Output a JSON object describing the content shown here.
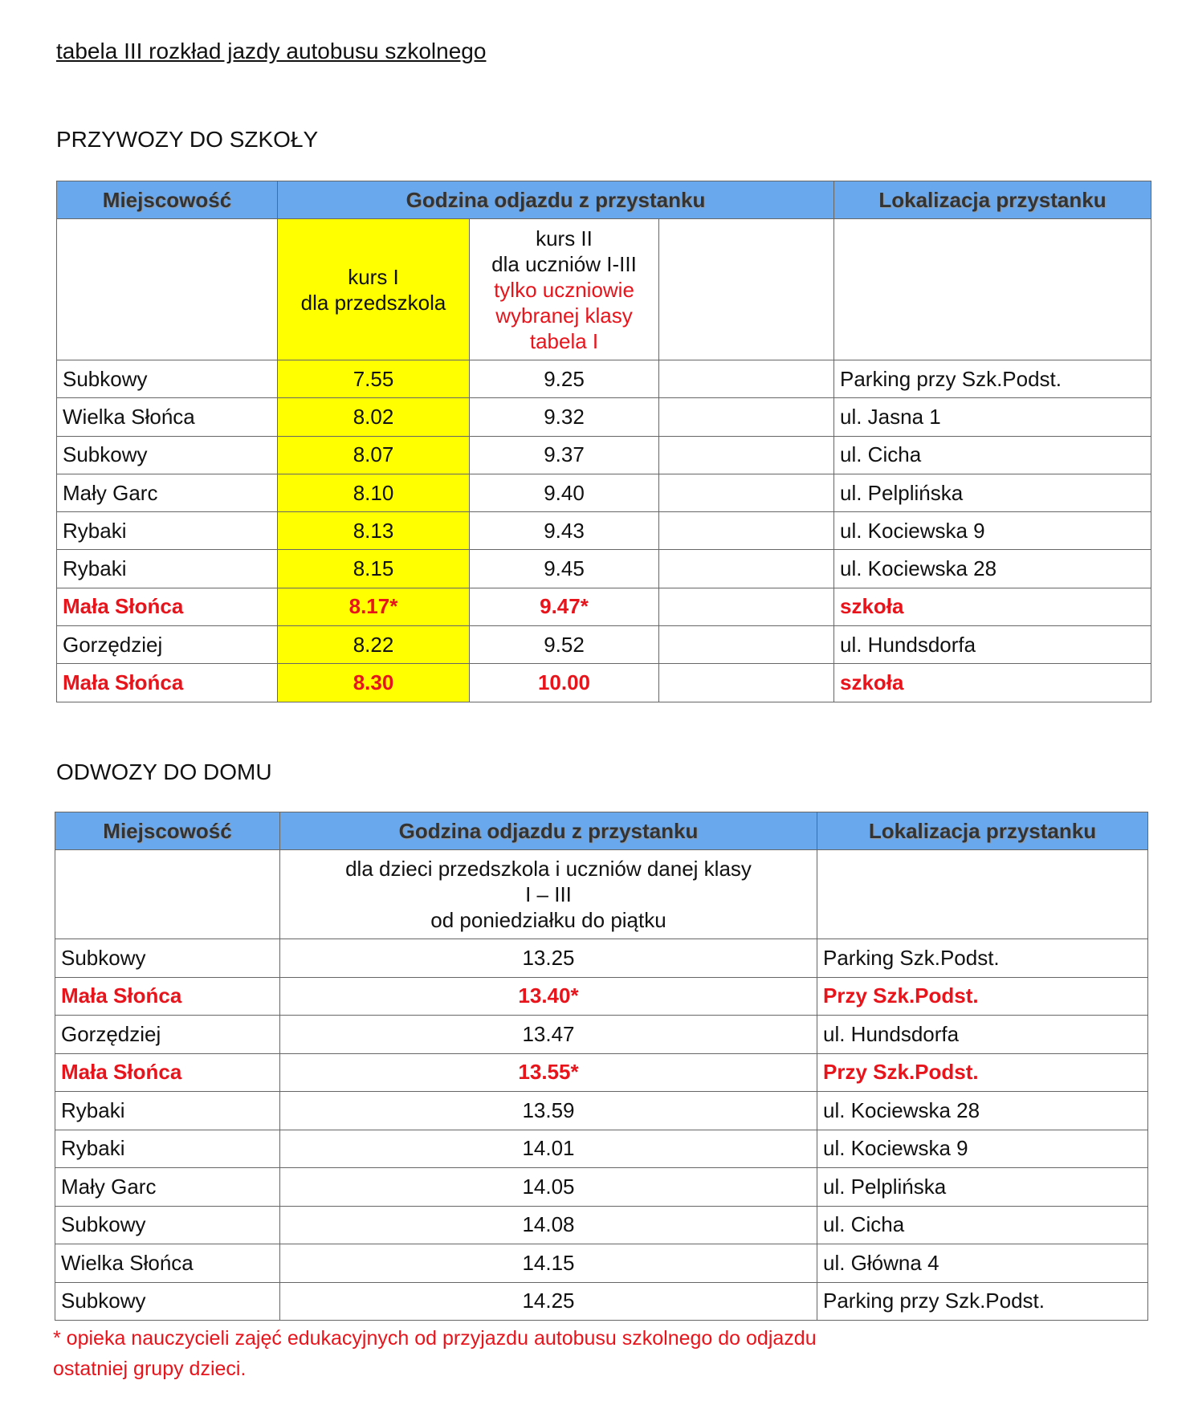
{
  "title": "tabela III rozkład jazdy autobusu szkolnego",
  "colors": {
    "header": "#6aa8ee",
    "highlight": "#ffff00",
    "red": "#e8141c"
  },
  "przywozy": {
    "heading": "PRZYWOZY DO SZKOŁY",
    "headers": [
      "Miejscowość",
      "Godzina odjazdu  z przystanku",
      "Lokalizacja przystanku"
    ],
    "kurs1": [
      "kurs I",
      "dla przedszkola"
    ],
    "kurs2": [
      "kurs II",
      "dla uczniów I-III"
    ],
    "kurs2_red": [
      "tylko uczniowie",
      "wybranej klasy",
      "tabela I"
    ],
    "rows": [
      {
        "place": "Subkowy",
        "k1": "7.55",
        "k2": "9.25",
        "loc": "Parking przy Szk.Podst.",
        "red": false
      },
      {
        "place": "Wielka Słońca",
        "k1": "8.02",
        "k2": "9.32",
        "loc": "ul. Jasna 1",
        "red": false
      },
      {
        "place": "Subkowy",
        "k1": "8.07",
        "k2": "9.37",
        "loc": "ul. Cicha",
        "red": false
      },
      {
        "place": "Mały Garc",
        "k1": "8.10",
        "k2": "9.40",
        "loc": "ul. Pelplińska",
        "red": false
      },
      {
        "place": "Rybaki",
        "k1": "8.13",
        "k2": "9.43",
        "loc": " ul. Kociewska 9",
        "red": false
      },
      {
        "place": "Rybaki",
        "k1": "8.15",
        "k2": "9.45",
        "loc": "ul. Kociewska 28",
        "red": false
      },
      {
        "place": "Mała Słońca",
        "k1": "8.17*",
        "k2": "9.47*",
        "loc": "szkoła",
        "red": true
      },
      {
        "place": "Gorzędziej",
        "k1": "8.22",
        "k2": "9.52",
        "loc": "ul. Hundsdorfa",
        "red": false
      },
      {
        "place": "Mała Słońca",
        "k1": "8.30",
        "k2": "10.00",
        "loc": "szkoła",
        "red": true
      }
    ]
  },
  "odwozy": {
    "heading": "ODWOZY DO DOMU",
    "headers": [
      "Miejscowość",
      "Godzina odjazdu z przystanku",
      "Lokalizacja przystanku"
    ],
    "sub": [
      "dla dzieci przedszkola i uczniów danej klasy",
      "I – III",
      "od poniedziałku do piątku"
    ],
    "rows": [
      {
        "place": "Subkowy",
        "time": "13.25",
        "loc": "Parking Szk.Podst.",
        "red": false
      },
      {
        "place": "Mała Słońca",
        "time": "13.40*",
        "loc": "Przy Szk.Podst.",
        "red": true
      },
      {
        "place": "Gorzędziej",
        "time": "13.47",
        "loc": "ul. Hundsdorfa",
        "red": false
      },
      {
        "place": "Mała Słońca",
        "time": "13.55*",
        "loc": "Przy Szk.Podst.",
        "red": true
      },
      {
        "place": "Rybaki",
        "time": "13.59",
        "loc": "ul. Kociewska 28",
        "red": false
      },
      {
        "place": "Rybaki",
        "time": "14.01",
        "loc": "ul. Kociewska 9",
        "red": false
      },
      {
        "place": "Mały Garc",
        "time": "14.05",
        "loc": "ul. Pelplińska",
        "red": false
      },
      {
        "place": "Subkowy",
        "time": "14.08",
        "loc": "ul. Cicha",
        "red": false
      },
      {
        "place": "Wielka Słońca",
        "time": "14.15",
        "loc": "ul. Główna 4",
        "red": false
      },
      {
        "place": "Subkowy",
        "time": "14.25",
        "loc": "Parking przy Szk.Podst.",
        "red": false
      }
    ]
  },
  "footnote": [
    "* opieka nauczycieli zajęć edukacyjnych od przyjazdu autobusu szkolnego do odjazdu",
    "ostatniej grupy dzieci."
  ]
}
